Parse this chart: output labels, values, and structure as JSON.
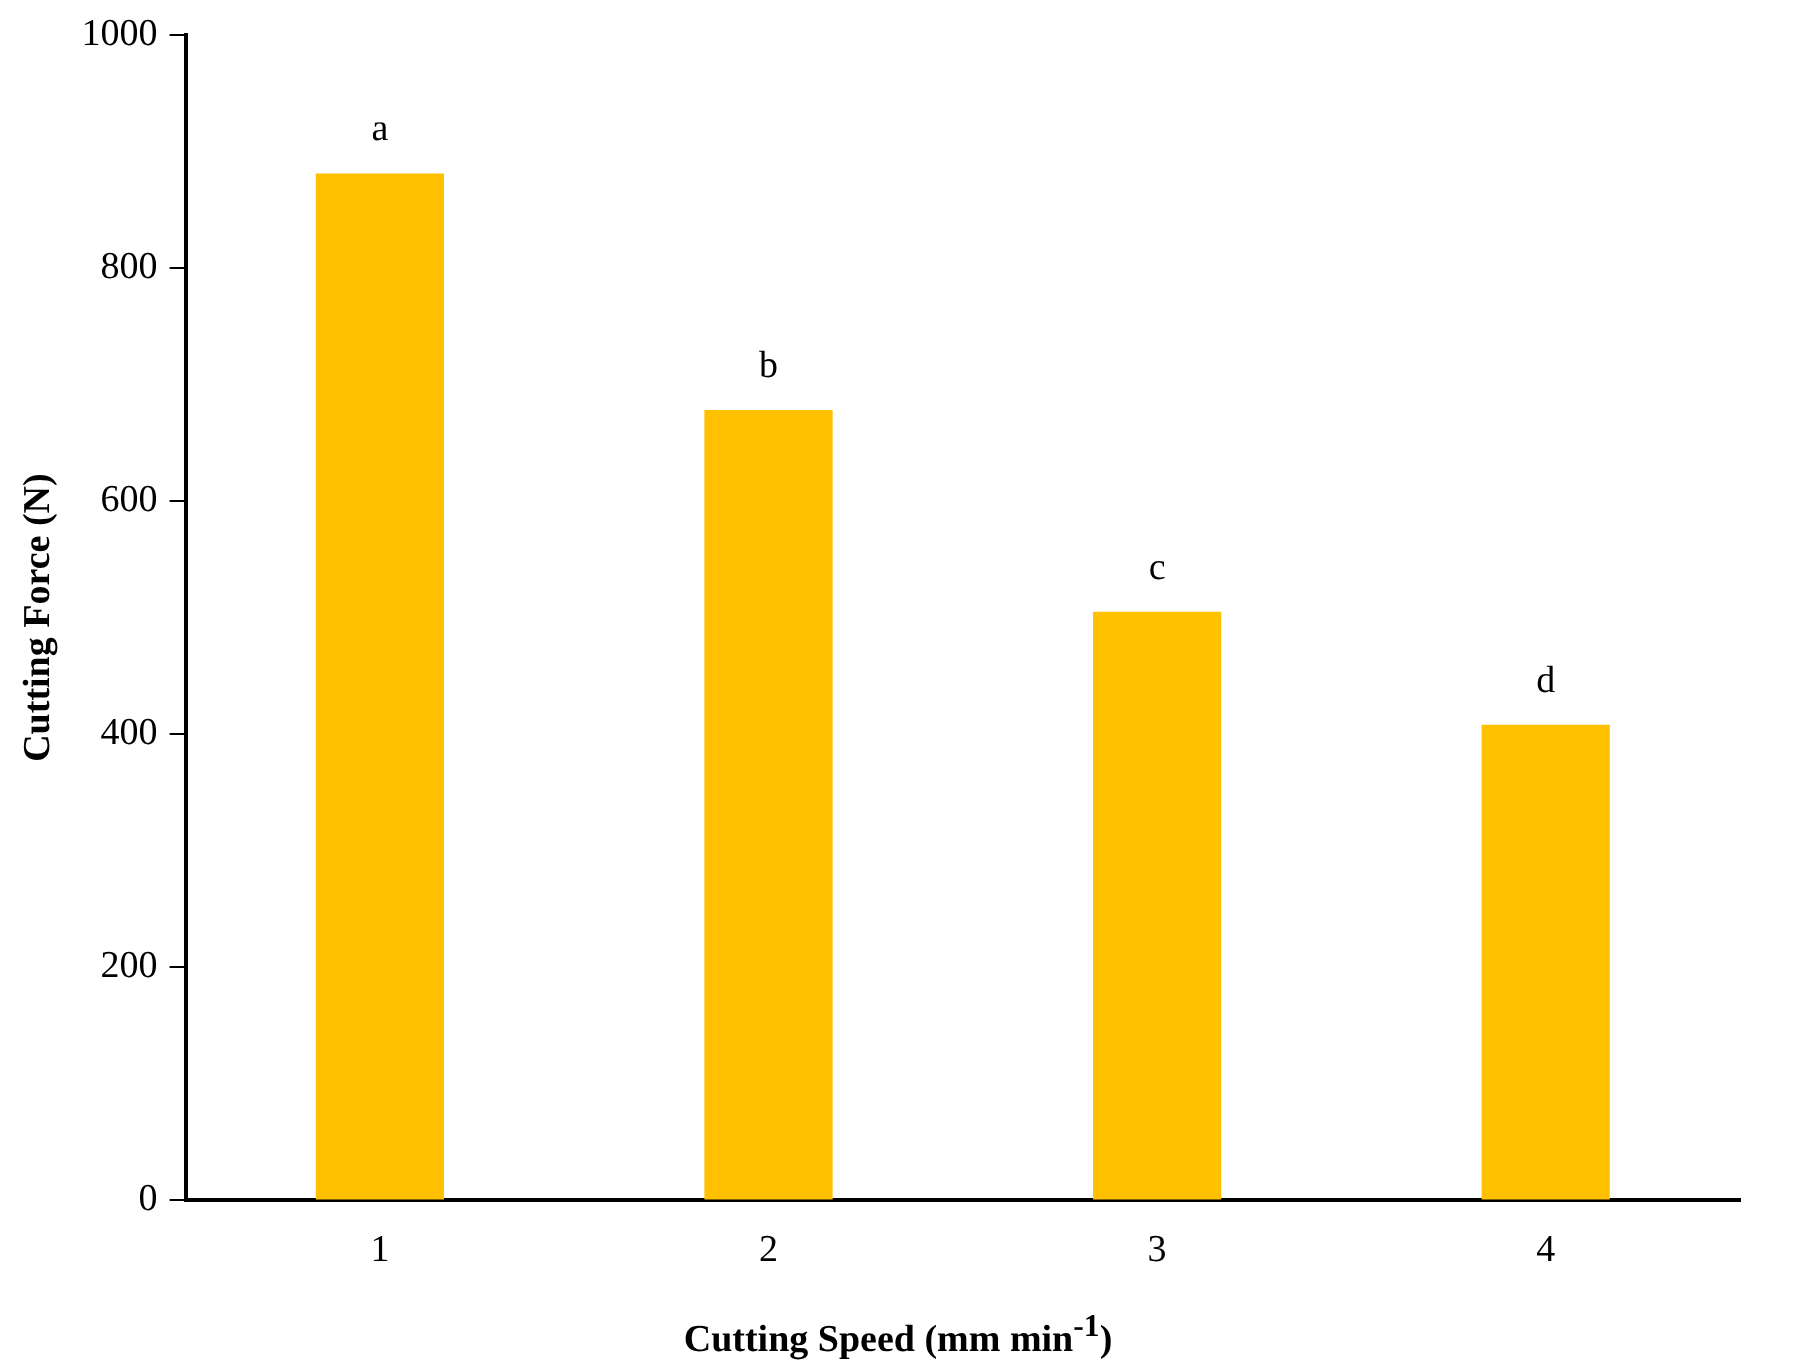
{
  "chart_data": {
    "type": "bar",
    "xlabel": "Cutting Speed (mm min$^{-1}$)",
    "ylabel": "Cutting Force (N)",
    "categories": [
      "1",
      "2",
      "3",
      "4"
    ],
    "values": [
      881,
      678,
      505,
      408
    ],
    "color": "#ffc000",
    "ylim": [
      0,
      1000
    ],
    "yticks": [
      0,
      200,
      400,
      600,
      800,
      1000
    ],
    "grid": false,
    "legend": false,
    "annotations": [
      {
        "text": "a",
        "x": "1",
        "y": 881
      },
      {
        "text": "b",
        "x": "2",
        "y": 678
      },
      {
        "text": "c",
        "x": "3",
        "y": 505
      },
      {
        "text": "d",
        "x": "4",
        "y": 408
      }
    ]
  }
}
